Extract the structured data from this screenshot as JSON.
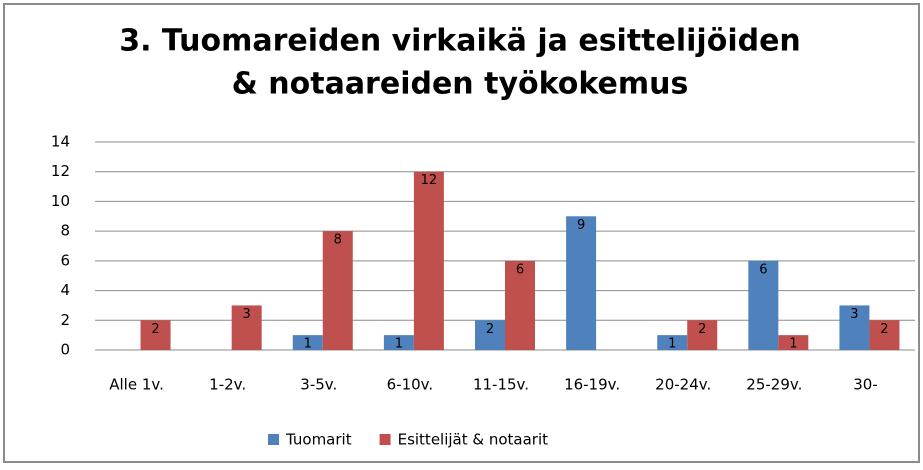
{
  "chart_data": {
    "type": "bar",
    "title": "3. Tuomareiden virkaikä ja esittelijöiden & notaareiden työkokemus",
    "title_lines": [
      "3. Tuomareiden virkaikä ja esittelijöiden",
      "& notaareiden työkokemus"
    ],
    "categories": [
      "Alle 1v.",
      "1-2v.",
      "3-5v.",
      "6-10v.",
      "11-15v.",
      "16-19v.",
      "20-24v.",
      "25-29v.",
      "30-"
    ],
    "series": [
      {
        "name": "Tuomarit",
        "color": "#4f81bd",
        "values": [
          0,
          0,
          1,
          1,
          2,
          9,
          1,
          6,
          3
        ]
      },
      {
        "name": "Esittelijät & notaarit",
        "color": "#c0504d",
        "values": [
          2,
          3,
          8,
          12,
          6,
          0,
          2,
          1,
          2
        ]
      }
    ],
    "ylim": [
      0,
      14
    ],
    "yticks": [
      0,
      2,
      4,
      6,
      8,
      10,
      12,
      14
    ],
    "grid": true,
    "legend": "bottom"
  }
}
